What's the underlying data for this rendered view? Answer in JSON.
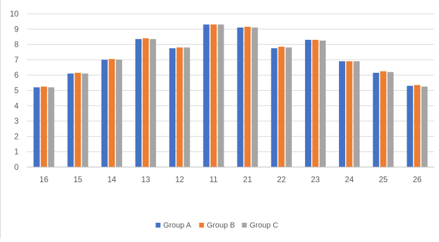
{
  "chart_data": {
    "type": "bar",
    "title": "",
    "xlabel": "",
    "ylabel": "",
    "categories": [
      "16",
      "15",
      "14",
      "13",
      "12",
      "11",
      "21",
      "22",
      "23",
      "24",
      "25",
      "26"
    ],
    "series": [
      {
        "name": "Group A",
        "color": "#4472c4",
        "values": [
          5.2,
          6.1,
          7.0,
          8.35,
          7.75,
          9.3,
          9.1,
          7.75,
          8.3,
          6.9,
          6.15,
          5.3
        ]
      },
      {
        "name": "Group B",
        "color": "#ed7d31",
        "values": [
          5.25,
          6.15,
          7.05,
          8.4,
          7.8,
          9.3,
          9.15,
          7.85,
          8.3,
          6.9,
          6.25,
          5.35
        ]
      },
      {
        "name": "Group C",
        "color": "#a5a5a5",
        "values": [
          5.2,
          6.1,
          7.0,
          8.35,
          7.8,
          9.3,
          9.1,
          7.8,
          8.25,
          6.9,
          6.2,
          5.25
        ]
      }
    ],
    "ylim": [
      0,
      10
    ],
    "yticks": [
      0,
      1,
      2,
      3,
      4,
      5,
      6,
      7,
      8,
      9,
      10
    ],
    "grid": true,
    "legend": "bottom"
  }
}
